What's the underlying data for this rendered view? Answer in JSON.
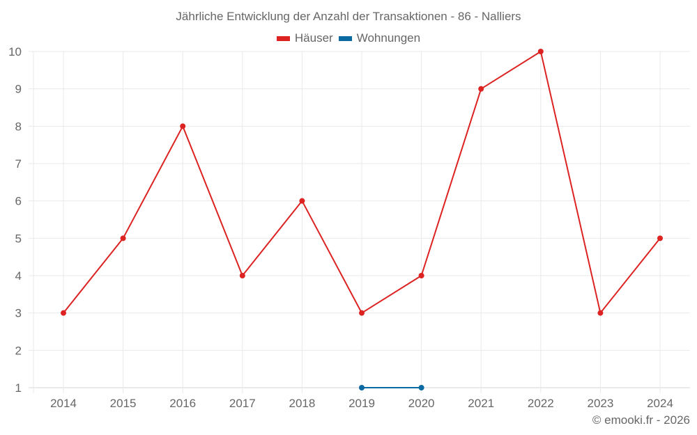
{
  "chart": {
    "title": "Jährliche Entwicklung der Anzahl der Transaktionen - 86 - Nalliers",
    "credit": "© emooki.fr - 2026",
    "legend": [
      {
        "label": "Häuser",
        "color": "#dd2222"
      },
      {
        "label": "Wohnungen",
        "color": "#0a6aa1"
      }
    ],
    "colors": {
      "grid": "#e9e9e9",
      "axis": "#d6d6d6",
      "text": "#666666"
    }
  },
  "chart_data": {
    "type": "line",
    "title": "Jährliche Entwicklung der Anzahl der Transaktionen - 86 - Nalliers",
    "xlabel": "",
    "ylabel": "",
    "categories": [
      "2014",
      "2015",
      "2016",
      "2017",
      "2018",
      "2019",
      "2020",
      "2021",
      "2022",
      "2023",
      "2024"
    ],
    "series": [
      {
        "name": "Häuser",
        "color": "#dd2222",
        "values": [
          3,
          5,
          8,
          4,
          6,
          3,
          4,
          9,
          10,
          3,
          5
        ]
      },
      {
        "name": "Wohnungen",
        "color": "#0a6aa1",
        "values": [
          null,
          null,
          null,
          null,
          null,
          1,
          1,
          null,
          null,
          null,
          null
        ]
      }
    ],
    "ylim": [
      1,
      10
    ],
    "yticks": [
      1,
      2,
      3,
      4,
      5,
      6,
      7,
      8,
      9,
      10
    ],
    "grid": true,
    "legend_position": "top-center"
  }
}
